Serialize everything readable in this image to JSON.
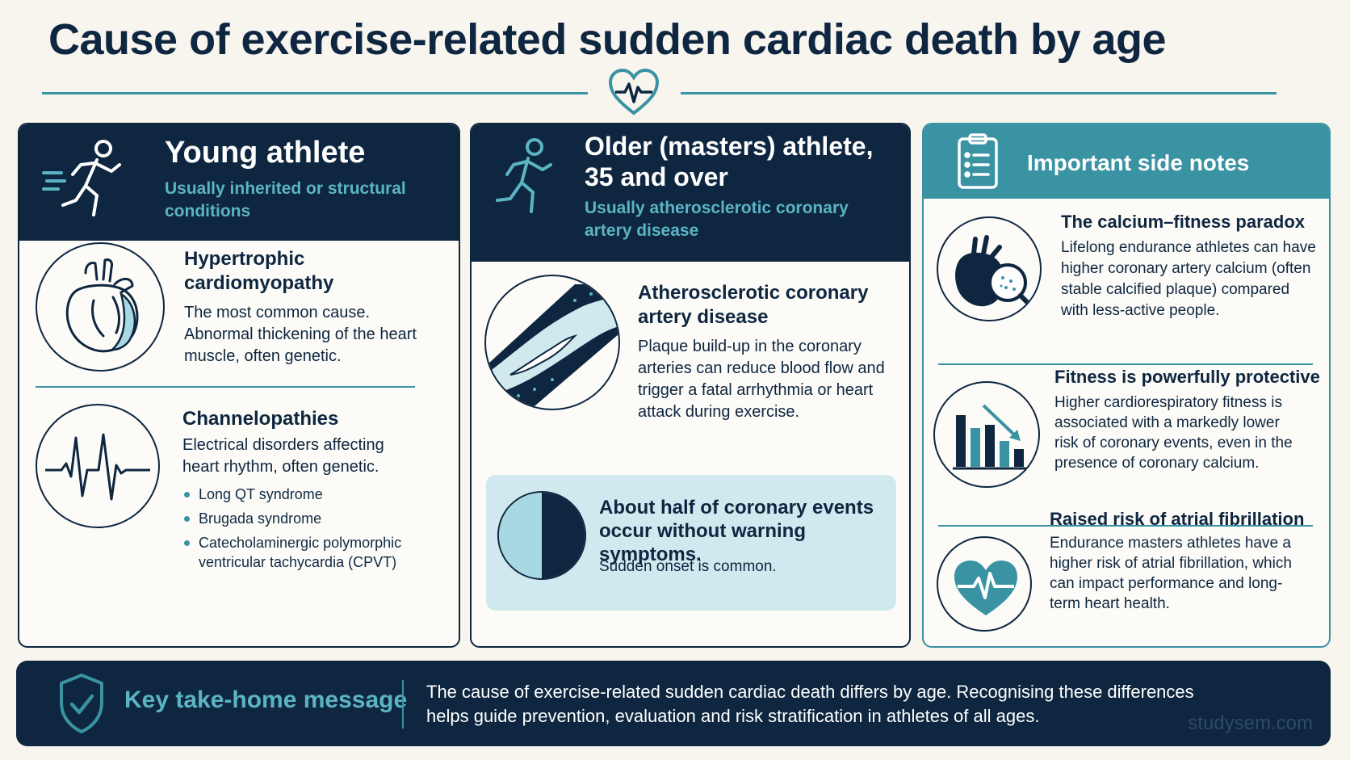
{
  "title": "Cause of exercise-related sudden cardiac death by age",
  "colors": {
    "navy": "#0e2640",
    "teal": "#3a93a3",
    "light_teal": "#cfe9ef",
    "background": "#f8f5ef"
  },
  "young": {
    "heading": "Young athlete",
    "subheading": "Usually inherited or structural conditions",
    "icon": "running-figure-icon",
    "items": [
      {
        "icon": "heart-anatomy-icon",
        "title": "Hypertrophic cardiomyopathy",
        "text": "The most common cause. Abnormal thickening of the heart muscle, often genetic."
      },
      {
        "icon": "ecg-waveform-icon",
        "title": "Channelopathies",
        "text": "Electrical disorders affecting heart rhythm, often genetic.",
        "bullets": [
          "Long QT syndrome",
          "Brugada syndrome",
          "Catecholaminergic polymorphic ventricular tachycardia (CPVT)"
        ]
      }
    ]
  },
  "older": {
    "heading": "Older (masters) athlete, 35 and over",
    "subheading": "Usually atherosclerotic coronary artery disease",
    "icon": "running-figure-icon",
    "item": {
      "icon": "artery-plaque-icon",
      "title": "Atherosclerotic coronary artery disease",
      "text": "Plaque build-up in the coronary arteries can reduce blood flow and trigger a fatal arrhythmia or heart attack during exercise."
    },
    "callout": {
      "icon": "half-circle-icon",
      "fraction": 0.5,
      "title": "About half of coronary events occur without warning symptoms.",
      "text": "Sudden onset is common."
    }
  },
  "notes": {
    "heading": "Important side notes",
    "icon": "clipboard-checklist-icon",
    "items": [
      {
        "icon": "heart-magnifier-icon",
        "title": "The calcium–fitness paradox",
        "text": "Lifelong endurance athletes can have higher coronary artery calcium (often stable calcified plaque) compared with less-active people."
      },
      {
        "icon": "declining-bar-chart-icon",
        "title": "Fitness is powerfully protective",
        "text": "Higher cardiorespiratory fitness is associated with a markedly lower risk of coronary events, even in the presence of coronary calcium."
      },
      {
        "icon": "heart-pulse-icon",
        "title": "Raised risk of atrial fibrillation",
        "text": "Endurance masters athletes have a higher risk of atrial fibrillation, which can impact performance and long-term heart health."
      }
    ]
  },
  "footer": {
    "icon": "shield-check-icon",
    "title": "Key take-home message",
    "text": "The cause of exercise-related sudden cardiac death differs by age. Recognising these differences helps guide prevention, evaluation and risk stratification in athletes of all ages.",
    "watermark": "studysem.com"
  }
}
